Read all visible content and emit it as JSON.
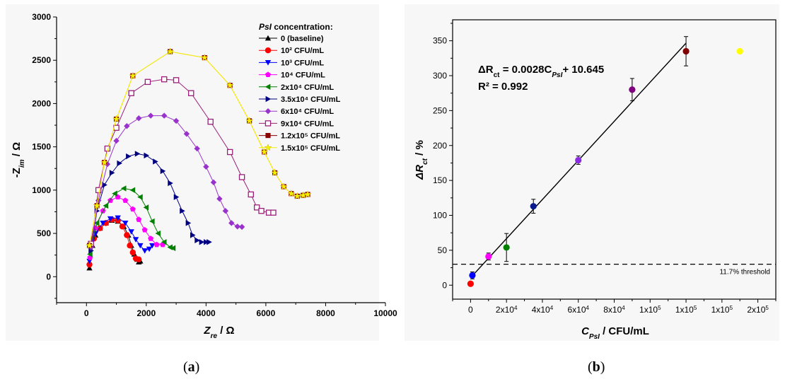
{
  "captions": {
    "a": "a",
    "b": "b"
  },
  "chart_data": [
    {
      "type": "scatter",
      "panel": "a",
      "xlabel": {
        "main": "Z",
        "sub": "re",
        "unit": " / Ω"
      },
      "ylabel": {
        "main": "-Z",
        "sub": "im",
        "unit": " / Ω"
      },
      "xlim": [
        -1000,
        10000
      ],
      "ylim": [
        -300,
        3000
      ],
      "xticks": [
        0,
        2000,
        4000,
        6000,
        8000,
        10000
      ],
      "yticks": [
        0,
        500,
        1000,
        1500,
        2000,
        2500,
        3000
      ],
      "legend_title": {
        "italic": "PsI",
        "rest": "  concentration:"
      },
      "legend_position": "top-right",
      "series": [
        {
          "name": "0 (baseline)",
          "color": "#000000",
          "marker": "tri-up",
          "points": [
            [
              100,
              100
            ],
            [
              200,
              360
            ],
            [
              300,
              480
            ],
            [
              450,
              560
            ],
            [
              650,
              620
            ],
            [
              850,
              650
            ],
            [
              1050,
              640
            ],
            [
              1250,
              580
            ],
            [
              1400,
              480
            ],
            [
              1500,
              360
            ],
            [
              1600,
              260
            ],
            [
              1700,
              200
            ],
            [
              1750,
              170
            ],
            [
              1800,
              180
            ]
          ]
        },
        {
          "name": "10² CFU/mL",
          "color": "#ff0000",
          "marker": "circle",
          "points": [
            [
              100,
              140
            ],
            [
              250,
              440
            ],
            [
              450,
              560
            ],
            [
              650,
              620
            ],
            [
              850,
              660
            ],
            [
              1050,
              650
            ],
            [
              1200,
              580
            ],
            [
              1350,
              480
            ],
            [
              1450,
              360
            ],
            [
              1550,
              280
            ],
            [
              1650,
              210
            ],
            [
              1750,
              200
            ]
          ]
        },
        {
          "name": "10³ CFU/mL",
          "color": "#0000ff",
          "marker": "tri-down",
          "points": [
            [
              100,
              180
            ],
            [
              300,
              500
            ],
            [
              550,
              620
            ],
            [
              800,
              670
            ],
            [
              1050,
              680
            ],
            [
              1300,
              620
            ],
            [
              1500,
              520
            ],
            [
              1650,
              430
            ],
            [
              1800,
              360
            ],
            [
              1950,
              300
            ],
            [
              2100,
              320
            ],
            [
              2200,
              360
            ]
          ]
        },
        {
          "name": "10⁴ CFU/mL",
          "color": "#ff00ff",
          "marker": "pentagon",
          "points": [
            [
              120,
              220
            ],
            [
              300,
              560
            ],
            [
              550,
              760
            ],
            [
              800,
              880
            ],
            [
              1050,
              920
            ],
            [
              1300,
              880
            ],
            [
              1550,
              780
            ],
            [
              1750,
              660
            ],
            [
              1950,
              540
            ],
            [
              2150,
              440
            ],
            [
              2350,
              370
            ],
            [
              2550,
              370
            ]
          ]
        },
        {
          "name": "2x10⁴ CFU/mL",
          "color": "#008000",
          "marker": "tri-left",
          "points": [
            [
              120,
              260
            ],
            [
              350,
              620
            ],
            [
              650,
              820
            ],
            [
              950,
              960
            ],
            [
              1250,
              1020
            ],
            [
              1550,
              1000
            ],
            [
              1800,
              920
            ],
            [
              2000,
              800
            ],
            [
              2200,
              640
            ],
            [
              2400,
              500
            ],
            [
              2600,
              400
            ],
            [
              2800,
              340
            ],
            [
              2900,
              330
            ]
          ]
        },
        {
          "name": "3.5x10⁴ CFU/mL",
          "color": "#000080",
          "marker": "tri-right",
          "points": [
            [
              150,
              300
            ],
            [
              350,
              760
            ],
            [
              600,
              1060
            ],
            [
              850,
              1200
            ],
            [
              1100,
              1310
            ],
            [
              1400,
              1390
            ],
            [
              1700,
              1420
            ],
            [
              2000,
              1400
            ],
            [
              2300,
              1330
            ],
            [
              2550,
              1220
            ],
            [
              2800,
              1080
            ],
            [
              3000,
              920
            ],
            [
              3200,
              760
            ],
            [
              3400,
              620
            ],
            [
              3550,
              480
            ],
            [
              3700,
              420
            ],
            [
              3850,
              400
            ],
            [
              4000,
              400
            ],
            [
              4100,
              400
            ]
          ]
        },
        {
          "name": "6x10⁴ CFU/mL",
          "color": "#9932cc",
          "marker": "diamond",
          "points": [
            [
              150,
              340
            ],
            [
              400,
              880
            ],
            [
              700,
              1300
            ],
            [
              1000,
              1570
            ],
            [
              1350,
              1740
            ],
            [
              1750,
              1830
            ],
            [
              2150,
              1860
            ],
            [
              2600,
              1860
            ],
            [
              3000,
              1800
            ],
            [
              3350,
              1650
            ],
            [
              3700,
              1480
            ],
            [
              4000,
              1270
            ],
            [
              4250,
              1090
            ],
            [
              4450,
              900
            ],
            [
              4650,
              760
            ],
            [
              4850,
              620
            ],
            [
              5050,
              580
            ],
            [
              5200,
              575
            ]
          ]
        },
        {
          "name": "9x10⁴ CFU/mL",
          "color": "#9a1f7a",
          "marker": "square-open",
          "points": [
            [
              150,
              380
            ],
            [
              400,
              1000
            ],
            [
              700,
              1480
            ],
            [
              1000,
              1720
            ],
            [
              1500,
              2120
            ],
            [
              2050,
              2250
            ],
            [
              2600,
              2280
            ],
            [
              3000,
              2270
            ],
            [
              3500,
              2120
            ],
            [
              4150,
              1790
            ],
            [
              4800,
              1440
            ],
            [
              5200,
              1150
            ],
            [
              5500,
              950
            ],
            [
              5700,
              800
            ],
            [
              5850,
              760
            ],
            [
              6100,
              740
            ],
            [
              6250,
              740
            ]
          ]
        },
        {
          "name": "1.2x10⁵ CFU/mL",
          "color": "#8b0000",
          "marker": "square",
          "points": [
            [
              100,
              360
            ],
            [
              350,
              820
            ],
            [
              600,
              1320
            ],
            [
              1000,
              1820
            ],
            [
              1550,
              2320
            ],
            [
              2800,
              2600
            ],
            [
              3950,
              2530
            ],
            [
              4800,
              2210
            ],
            [
              5450,
              1800
            ],
            [
              5950,
              1440
            ],
            [
              6300,
              1200
            ],
            [
              6600,
              1040
            ],
            [
              6850,
              960
            ],
            [
              7050,
              930
            ],
            [
              7250,
              940
            ],
            [
              7400,
              950
            ]
          ]
        },
        {
          "name": "1.5x10⁵ CFU/mL",
          "color": "#f2f200",
          "marker": "star",
          "points": [
            [
              100,
              360
            ],
            [
              350,
              820
            ],
            [
              600,
              1320
            ],
            [
              1000,
              1820
            ],
            [
              1550,
              2320
            ],
            [
              2800,
              2600
            ],
            [
              3950,
              2530
            ],
            [
              4800,
              2210
            ],
            [
              5450,
              1800
            ],
            [
              5950,
              1440
            ],
            [
              6300,
              1200
            ],
            [
              6600,
              1040
            ],
            [
              6850,
              960
            ],
            [
              7050,
              930
            ],
            [
              7250,
              940
            ],
            [
              7400,
              950
            ]
          ]
        }
      ],
      "line_color": "#ff9a28"
    },
    {
      "type": "scatter",
      "panel": "b",
      "xlabel": {
        "main": "C",
        "sub": "PsI",
        "unit": " / CFU/mL"
      },
      "ylabel": {
        "main": "ΔR",
        "sub": "ct",
        "unit": " / %"
      },
      "xlim": [
        -10000,
        170000
      ],
      "ylim": [
        -20,
        380
      ],
      "xticks": [
        {
          "v": 0,
          "base": "0",
          "exp": ""
        },
        {
          "v": 20000,
          "base": "2x10",
          "exp": "4"
        },
        {
          "v": 40000,
          "base": "4x10",
          "exp": "4"
        },
        {
          "v": 60000,
          "base": "6x10",
          "exp": "4"
        },
        {
          "v": 80000,
          "base": "8x10",
          "exp": "4"
        },
        {
          "v": 100000,
          "base": "1x10",
          "exp": "5"
        },
        {
          "v": 120000,
          "base": "1x10",
          "exp": "5"
        },
        {
          "v": 140000,
          "base": "1x10",
          "exp": "5"
        },
        {
          "v": 160000,
          "base": "2x10",
          "exp": "5"
        }
      ],
      "yticks": [
        0,
        50,
        100,
        150,
        200,
        250,
        300,
        350
      ],
      "points": [
        {
          "x": 0,
          "y": 2,
          "err": 2,
          "color": "#ff0000"
        },
        {
          "x": 1000,
          "y": 14,
          "err": 5,
          "color": "#0000ff"
        },
        {
          "x": 10000,
          "y": 41,
          "err": 5,
          "color": "#ff00ff"
        },
        {
          "x": 20000,
          "y": 54,
          "err": 20,
          "color": "#008000"
        },
        {
          "x": 35000,
          "y": 113,
          "err": 10,
          "color": "#0a1a8c"
        },
        {
          "x": 60000,
          "y": 179,
          "err": 6,
          "color": "#8a2be2"
        },
        {
          "x": 90000,
          "y": 280,
          "err": 16,
          "color": "#800080"
        },
        {
          "x": 120000,
          "y": 335,
          "err": 21,
          "color": "#800000"
        },
        {
          "x": 150000,
          "y": 335,
          "err": 0,
          "color": "#ffff00"
        }
      ],
      "fit_line": {
        "x0": 0,
        "y0": 10.645,
        "x1": 120000,
        "y1": 346.6
      },
      "threshold": {
        "y": 30,
        "label": "11.7% threshold"
      },
      "equation": {
        "lhs": "ΔR",
        "lhs_sub": "ct",
        "mid": " = 0.0028C",
        "mid_sub": "PsI",
        "rhs": "+ 10.645"
      },
      "r2": "R² = 0.992"
    }
  ]
}
